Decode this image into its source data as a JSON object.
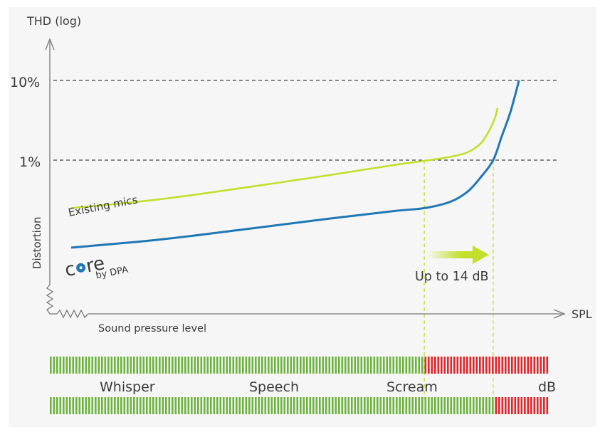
{
  "chart_data": {
    "type": "line",
    "title": "",
    "ylabel_top": "THD (log)",
    "ylabel_side": "Distortion",
    "xlabel_right": "SPL",
    "xlabel_bottom": "Sound pressure level",
    "y_scale": "log",
    "y_ticks": [
      "10%",
      "1%"
    ],
    "ylim_percent": [
      0.05,
      14
    ],
    "xlim": [
      0,
      100
    ],
    "series": [
      {
        "name": "Existing mics",
        "color": "#c3df2c",
        "points": [
          [
            0,
            0.25
          ],
          [
            20,
            0.32
          ],
          [
            40,
            0.45
          ],
          [
            60,
            0.65
          ],
          [
            75,
            0.87
          ],
          [
            82,
            0.98
          ],
          [
            88,
            1.1
          ],
          [
            92,
            1.25
          ],
          [
            95,
            1.6
          ],
          [
            97,
            2.3
          ],
          [
            98.5,
            3.5
          ],
          [
            99,
            4.5
          ]
        ]
      },
      {
        "name": "core by DPA",
        "label_main": "core",
        "label_sub": "by DPA",
        "color": "#1f77b4",
        "points": [
          [
            0,
            0.08
          ],
          [
            20,
            0.1
          ],
          [
            40,
            0.135
          ],
          [
            60,
            0.185
          ],
          [
            75,
            0.23
          ],
          [
            82,
            0.25
          ],
          [
            88,
            0.3
          ],
          [
            92,
            0.4
          ],
          [
            95,
            0.6
          ],
          [
            98,
            1.0
          ],
          [
            100,
            2.0
          ],
          [
            102,
            4.0
          ],
          [
            104,
            10.0
          ]
        ]
      }
    ],
    "dashed_verticals_x": [
      82,
      98
    ],
    "annotation": "Up to 14 dB",
    "arrow_color": "#c3df2c",
    "grid": "dashed at 1% and 10%"
  },
  "meter": {
    "labels": [
      "Whisper",
      "Speech",
      "Scream",
      "dB"
    ],
    "green": "#6db33f",
    "red": "#e0252b",
    "top_bar_red_from": 82,
    "bottom_bar_red_from": 98
  }
}
